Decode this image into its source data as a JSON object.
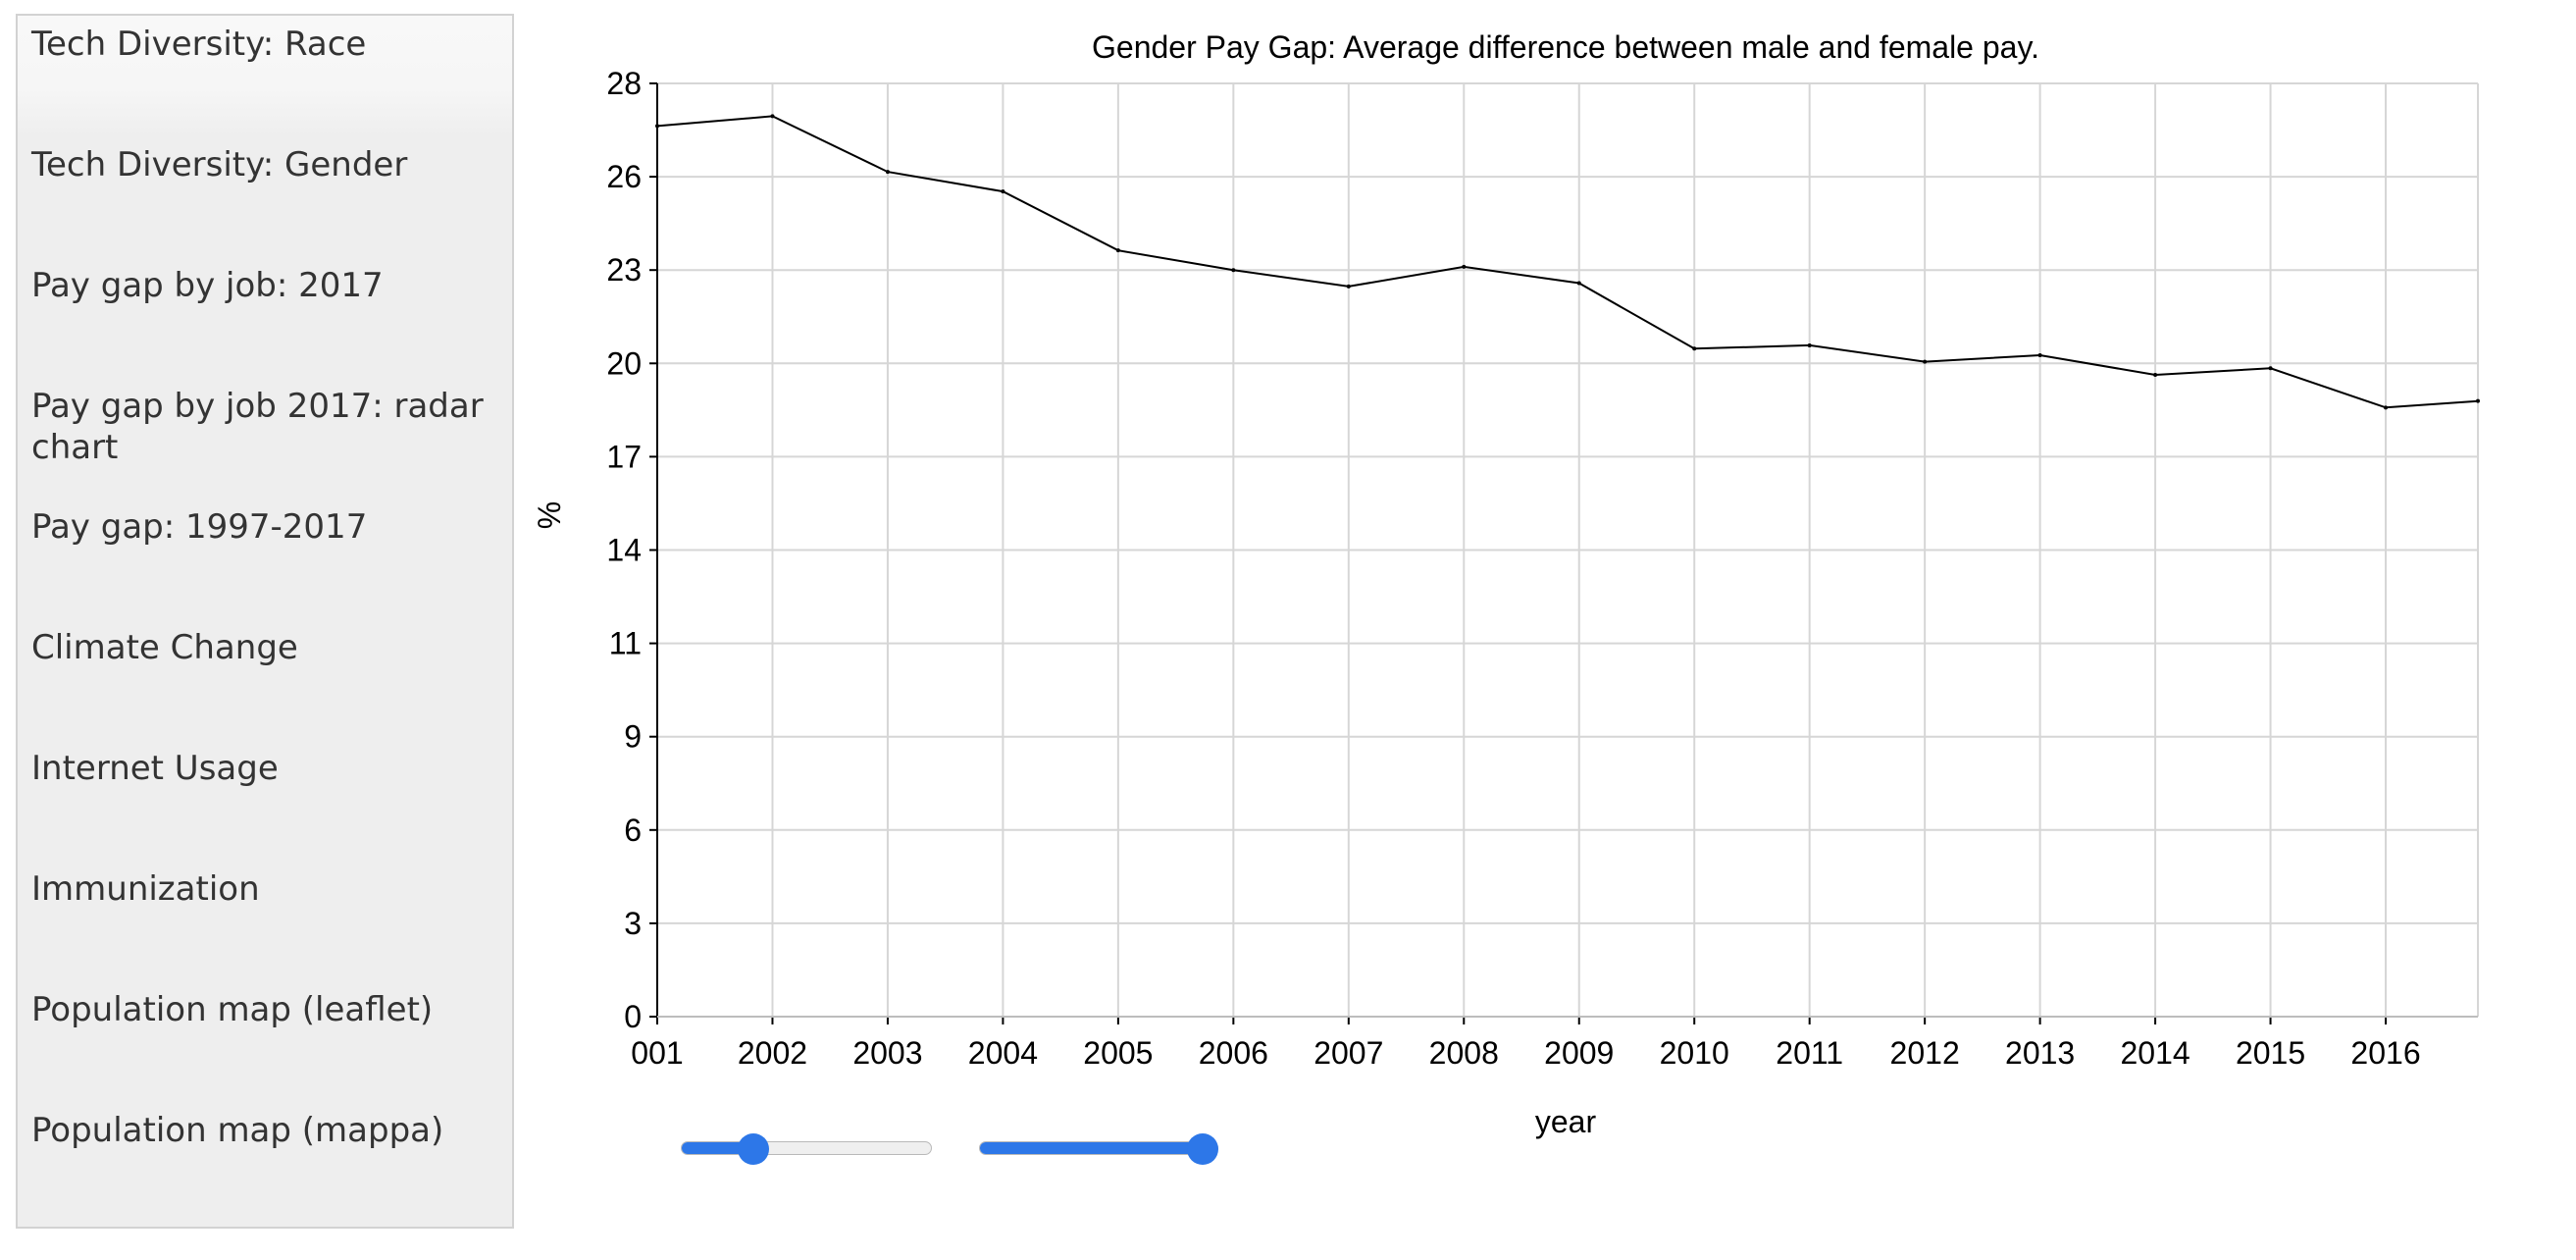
{
  "sidebar": {
    "items": [
      {
        "label": "Tech Diversity: Race"
      },
      {
        "label": "Tech Diversity: Gender"
      },
      {
        "label": "Pay gap by job: 2017"
      },
      {
        "label": "Pay gap by job 2017: radar chart"
      },
      {
        "label": "Pay gap: 1997-2017"
      },
      {
        "label": "Climate Change"
      },
      {
        "label": "Internet Usage"
      },
      {
        "label": "Immunization"
      },
      {
        "label": "Population map (leaflet)"
      },
      {
        "label": "Population map (mappa)"
      }
    ]
  },
  "chart_data": {
    "type": "line",
    "title": "Gender Pay Gap: Average difference between male and female pay.",
    "xlabel": "year",
    "ylabel": "%",
    "x_tick_labels": [
      "001",
      "2002",
      "2003",
      "2004",
      "2005",
      "2006",
      "2007",
      "2008",
      "2009",
      "2010",
      "2011",
      "2012",
      "2013",
      "2014",
      "2015",
      "2016"
    ],
    "y_tick_labels": [
      "0",
      "3",
      "6",
      "9",
      "11",
      "14",
      "17",
      "20",
      "23",
      "26",
      "28"
    ],
    "xlim": [
      2001,
      2016.8
    ],
    "ylim": [
      0,
      28.5
    ],
    "grid": true,
    "series": [
      {
        "color": "#000000",
        "x": [
          2001,
          2002,
          2003,
          2004,
          2005,
          2006,
          2007,
          2008,
          2009,
          2010,
          2011,
          2012,
          2013,
          2014,
          2015,
          2016,
          2016.8
        ],
        "values": [
          27.2,
          27.5,
          25.8,
          25.2,
          23.4,
          22.8,
          22.3,
          22.9,
          22.4,
          20.4,
          20.5,
          20.0,
          20.2,
          19.6,
          19.8,
          18.6,
          18.8
        ]
      }
    ]
  },
  "controls": {
    "start_slider": {
      "value": 0.29
    },
    "end_slider": {
      "value": 1.0
    },
    "accent_color": "#2d77e8"
  }
}
